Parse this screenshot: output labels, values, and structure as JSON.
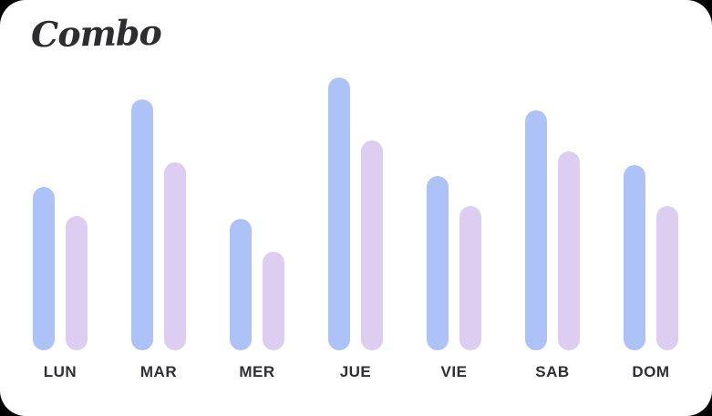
{
  "page": {
    "background_color": "#000000",
    "card_color": "#ffffff"
  },
  "logo": {
    "text": "Combo",
    "color": "#2d2d30"
  },
  "chart_data": {
    "type": "bar",
    "title": "",
    "categories": [
      "LUN",
      "MAR",
      "MER",
      "JUE",
      "VIE",
      "SAB",
      "DOM"
    ],
    "series": [
      {
        "name": "series-1-blue",
        "color": "#adc3f7",
        "values": [
          60,
          92,
          48,
          100,
          64,
          88,
          68
        ]
      },
      {
        "name": "series-2-lavender",
        "color": "#ddcdf0",
        "values": [
          49,
          69,
          36,
          77,
          53,
          73,
          53
        ]
      }
    ],
    "xlabel": "",
    "ylabel": "",
    "ylim": [
      0,
      100
    ],
    "grid": false,
    "legend": "none",
    "label_color": "#2f2f33"
  }
}
